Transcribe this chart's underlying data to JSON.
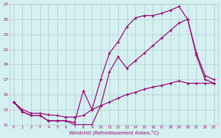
{
  "xlabel": "Windchill (Refroidissement éolien,°C)",
  "background_color": "#d4f0f0",
  "grid_color": "#b0c8d0",
  "line_color": "#990077",
  "xlim": [
    -0.5,
    23.5
  ],
  "ylim": [
    11,
    27
  ],
  "xticks": [
    0,
    1,
    2,
    3,
    4,
    5,
    6,
    7,
    8,
    9,
    10,
    11,
    12,
    13,
    14,
    15,
    16,
    17,
    18,
    19,
    20,
    21,
    22,
    23
  ],
  "yticks": [
    11,
    13,
    15,
    17,
    19,
    21,
    23,
    25,
    27
  ],
  "series": [
    {
      "x": [
        0,
        1,
        2,
        3,
        4,
        5,
        6,
        7,
        8,
        9,
        10,
        11,
        12,
        13,
        14,
        15,
        16,
        17,
        18,
        19,
        20,
        21,
        22,
        23
      ],
      "y": [
        14.0,
        12.7,
        12.2,
        12.2,
        11.5,
        11.5,
        11.5,
        11.3,
        15.5,
        13.0,
        17.0,
        20.5,
        22.0,
        24.0,
        25.2,
        25.5,
        25.5,
        25.8,
        26.2,
        26.7,
        25.0,
        20.5,
        17.5,
        17.0
      ]
    },
    {
      "x": [
        0,
        1,
        2,
        3,
        4,
        5,
        6,
        7,
        8,
        9,
        10,
        11,
        12,
        13,
        14,
        15,
        16,
        17,
        18,
        19,
        20,
        21,
        22,
        23
      ],
      "y": [
        14.0,
        12.7,
        12.2,
        12.2,
        11.5,
        11.5,
        11.5,
        11.0,
        11.0,
        11.0,
        13.5,
        18.0,
        20.0,
        18.5,
        19.5,
        20.5,
        21.5,
        22.5,
        23.5,
        24.5,
        25.0,
        20.2,
        17.0,
        16.5
      ]
    },
    {
      "x": [
        0,
        1,
        2,
        3,
        4,
        5,
        6,
        7,
        8,
        9,
        10,
        11,
        12,
        13,
        14,
        15,
        16,
        17,
        18,
        19,
        20,
        21,
        22,
        23
      ],
      "y": [
        14.0,
        13.0,
        12.5,
        12.5,
        12.3,
        12.2,
        12.0,
        12.0,
        12.2,
        13.0,
        13.5,
        14.0,
        14.5,
        15.0,
        15.3,
        15.7,
        16.0,
        16.2,
        16.5,
        16.8,
        16.5,
        16.5,
        16.5,
        16.5
      ]
    }
  ]
}
